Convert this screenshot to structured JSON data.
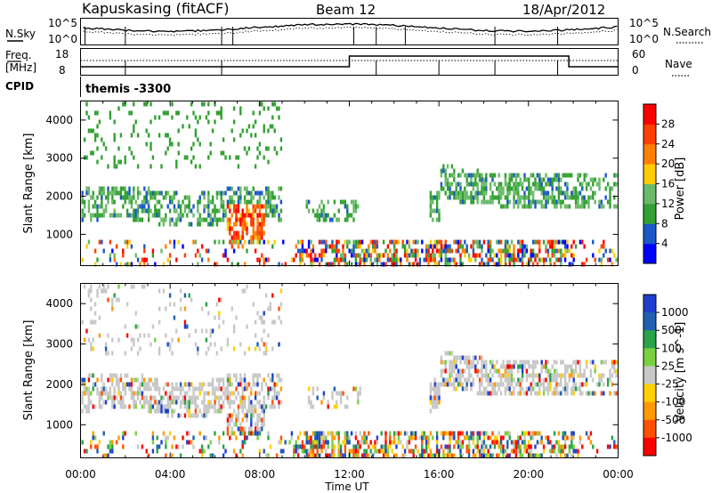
{
  "header": {
    "station": "Kapuskasing (fitACF)",
    "beam": "Beam 12",
    "date": "18/Apr/2012"
  },
  "nsky_panel": {
    "left_label": "N.Sky",
    "right_label": "N.Search",
    "left_ticks": [
      "10^5",
      "10^0"
    ],
    "right_ticks": [
      "10^5",
      "10^0"
    ]
  },
  "freq_panel": {
    "left_label_top": "Freq.",
    "left_label_bottom": "[MHz]",
    "right_label": "Nave",
    "left_ticks": [
      "18",
      "8"
    ],
    "right_ticks": [
      "60",
      "0"
    ]
  },
  "cpid": {
    "label": "CPID",
    "value": "themis -3300"
  },
  "colors": {
    "power": [
      "#0000ff",
      "#1b58c8",
      "#33a033",
      "#6aba6a",
      "#ffcc00",
      "#ff8000",
      "#ff4000",
      "#ff0000"
    ],
    "velocity": [
      "#1f3fd0",
      "#2060b0",
      "#2aa24a",
      "#7ad040",
      "#c8c8c8",
      "#ffd000",
      "#ff9a00",
      "#ff5000",
      "#ff0000"
    ]
  },
  "chart_data": [
    {
      "type": "heatmap",
      "title": "",
      "variable": "Power",
      "xlabel": "",
      "ylabel": "Slant Range [km]",
      "colorbar_label": "Power [dB]",
      "colorbar_ticks": [
        "28",
        "24",
        "20",
        "16",
        "12",
        "8",
        "4"
      ],
      "x_ticks": [
        "00:00",
        "04:00",
        "08:00",
        "12:00",
        "16:00",
        "20:00",
        "00:00"
      ],
      "y_ticks": [
        1000,
        2000,
        3000,
        4000
      ],
      "ylim": [
        180,
        4500
      ],
      "xlim_hours": [
        0,
        24
      ]
    },
    {
      "type": "heatmap",
      "title": "",
      "variable": "Velocity",
      "xlabel": "Time UT",
      "ylabel": "Slant Range [km]",
      "colorbar_label": "Velocity [m s^-1]",
      "colorbar_ticks": [
        "1000",
        "500",
        "100",
        "25",
        "-25",
        "-100",
        "-500",
        "-1000"
      ],
      "x_ticks": [
        "00:00",
        "04:00",
        "08:00",
        "12:00",
        "16:00",
        "20:00",
        "00:00"
      ],
      "y_ticks": [
        1000,
        2000,
        3000,
        4000
      ],
      "ylim": [
        180,
        4500
      ],
      "xlim_hours": [
        0,
        24
      ]
    }
  ]
}
